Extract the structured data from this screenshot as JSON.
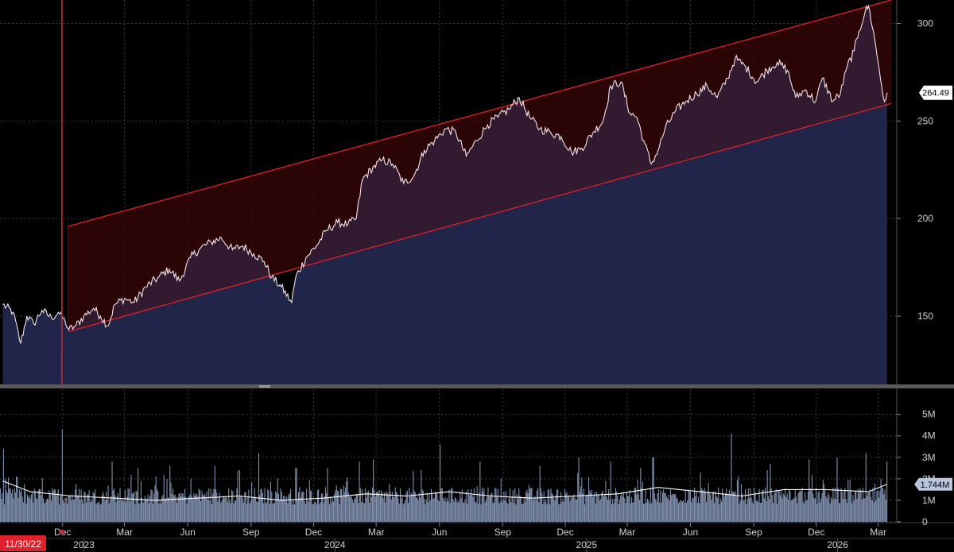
{
  "colors": {
    "background": "#000000",
    "price_fill": "#0b2240",
    "price_line": "#f2e4ea",
    "channel_line": "#e0202a",
    "channel_fill": "#3a0707",
    "volume_bar": "#7e8fad",
    "volume_avg": "#ffffff",
    "grid": "#3a3a3a",
    "marker": "#e0202a",
    "badge_bg": "#ffffff"
  },
  "chart_data": [
    {
      "type": "line",
      "panel": "price",
      "ylim": [
        115,
        312
      ],
      "yticks": [
        150,
        200,
        250,
        300
      ],
      "last_value": "264.49",
      "channel": {
        "upper": [
          [
            "2022-12-09",
            196
          ],
          [
            "2026-03-20",
            312
          ]
        ],
        "lower": [
          [
            "2022-12-09",
            142
          ],
          [
            "2026-03-20",
            259
          ]
        ]
      },
      "series": [
        {
          "values": [
            [
              "2022-09-05",
              156
            ],
            [
              "2022-09-20",
              152
            ],
            [
              "2022-10-01",
              136
            ],
            [
              "2022-10-10",
              150
            ],
            [
              "2022-10-20",
              146
            ],
            [
              "2022-11-01",
              153
            ],
            [
              "2022-11-15",
              149
            ],
            [
              "2022-11-25",
              152
            ],
            [
              "2022-12-05",
              147
            ],
            [
              "2022-12-10",
              143
            ],
            [
              "2022-12-20",
              145
            ],
            [
              "2023-01-01",
              150
            ],
            [
              "2023-01-15",
              154
            ],
            [
              "2023-01-25",
              150
            ],
            [
              "2023-02-05",
              145
            ],
            [
              "2023-02-15",
              156
            ],
            [
              "2023-03-01",
              159
            ],
            [
              "2023-03-15",
              157
            ],
            [
              "2023-04-01",
              165
            ],
            [
              "2023-04-20",
              170
            ],
            [
              "2023-05-05",
              174
            ],
            [
              "2023-05-20",
              168
            ],
            [
              "2023-06-05",
              180
            ],
            [
              "2023-06-20",
              185
            ],
            [
              "2023-07-05",
              188
            ],
            [
              "2023-07-20",
              190
            ],
            [
              "2023-08-05",
              184
            ],
            [
              "2023-08-20",
              186
            ],
            [
              "2023-09-05",
              182
            ],
            [
              "2023-09-20",
              178
            ],
            [
              "2023-10-01",
              170
            ],
            [
              "2023-10-15",
              165
            ],
            [
              "2023-10-30",
              157
            ],
            [
              "2023-11-05",
              170
            ],
            [
              "2023-11-20",
              180
            ],
            [
              "2023-12-05",
              186
            ],
            [
              "2023-12-20",
              194
            ],
            [
              "2024-01-05",
              198
            ],
            [
              "2024-01-20",
              197
            ],
            [
              "2024-02-01",
              200
            ],
            [
              "2024-02-10",
              220
            ],
            [
              "2024-02-25",
              226
            ],
            [
              "2024-03-10",
              230
            ],
            [
              "2024-03-25",
              228
            ],
            [
              "2024-04-10",
              218
            ],
            [
              "2024-04-25",
              222
            ],
            [
              "2024-05-10",
              235
            ],
            [
              "2024-05-25",
              240
            ],
            [
              "2024-06-10",
              246
            ],
            [
              "2024-06-25",
              244
            ],
            [
              "2024-07-10",
              232
            ],
            [
              "2024-07-25",
              240
            ],
            [
              "2024-08-10",
              248
            ],
            [
              "2024-08-25",
              252
            ],
            [
              "2024-09-10",
              256
            ],
            [
              "2024-09-25",
              262
            ],
            [
              "2024-10-10",
              252
            ],
            [
              "2024-10-25",
              246
            ],
            [
              "2024-11-10",
              244
            ],
            [
              "2024-11-25",
              242
            ],
            [
              "2024-12-10",
              234
            ],
            [
              "2024-12-25",
              236
            ],
            [
              "2025-01-10",
              244
            ],
            [
              "2025-01-25",
              250
            ],
            [
              "2025-02-05",
              268
            ],
            [
              "2025-02-20",
              270
            ],
            [
              "2025-03-05",
              254
            ],
            [
              "2025-03-15",
              252
            ],
            [
              "2025-03-25",
              240
            ],
            [
              "2025-04-05",
              228
            ],
            [
              "2025-04-15",
              235
            ],
            [
              "2025-04-25",
              246
            ],
            [
              "2025-05-10",
              255
            ],
            [
              "2025-05-25",
              260
            ],
            [
              "2025-06-10",
              264
            ],
            [
              "2025-06-25",
              268
            ],
            [
              "2025-07-10",
              262
            ],
            [
              "2025-07-25",
              272
            ],
            [
              "2025-08-05",
              282
            ],
            [
              "2025-08-20",
              278
            ],
            [
              "2025-09-05",
              270
            ],
            [
              "2025-09-20",
              276
            ],
            [
              "2025-10-05",
              280
            ],
            [
              "2025-10-20",
              276
            ],
            [
              "2025-11-01",
              262
            ],
            [
              "2025-11-15",
              266
            ],
            [
              "2025-11-30",
              260
            ],
            [
              "2025-12-10",
              272
            ],
            [
              "2025-12-25",
              260
            ],
            [
              "2026-01-05",
              264
            ],
            [
              "2026-01-15",
              278
            ],
            [
              "2026-01-25",
              286
            ],
            [
              "2026-02-01",
              296
            ],
            [
              "2026-02-10",
              306
            ],
            [
              "2026-02-15",
              309
            ],
            [
              "2026-02-22",
              296
            ],
            [
              "2026-03-01",
              280
            ],
            [
              "2026-03-06",
              268
            ],
            [
              "2026-03-10",
              260
            ],
            [
              "2026-03-14",
              264.49
            ]
          ]
        }
      ]
    },
    {
      "type": "bar",
      "panel": "volume",
      "ylim": [
        0,
        5.8
      ],
      "ytick_labels": [
        "0",
        "1M",
        "2M",
        "3M",
        "4M",
        "5M"
      ],
      "yticks": [
        0,
        1,
        2,
        3,
        4,
        5
      ],
      "units": "M",
      "last_avg_value": "1.744M",
      "volume_spikes": [
        [
          "2022-09-05",
          3.4
        ],
        [
          "2022-09-25",
          2.1
        ],
        [
          "2022-11-30",
          4.3
        ],
        [
          "2023-02-10",
          2.8
        ],
        [
          "2023-03-20",
          2.5
        ],
        [
          "2023-05-05",
          2.6
        ],
        [
          "2023-07-10",
          2.6
        ],
        [
          "2023-08-15",
          2.4
        ],
        [
          "2023-09-12",
          3.2
        ],
        [
          "2023-11-05",
          2.5
        ],
        [
          "2023-12-20",
          2.5
        ],
        [
          "2024-02-05",
          2.8
        ],
        [
          "2024-02-25",
          2.9
        ],
        [
          "2024-05-05",
          2.4
        ],
        [
          "2024-06-01",
          3.6
        ],
        [
          "2024-07-30",
          2.8
        ],
        [
          "2024-10-25",
          2.6
        ],
        [
          "2024-12-20",
          3.0
        ],
        [
          "2025-02-05",
          2.8
        ],
        [
          "2025-03-20",
          2.5
        ],
        [
          "2025-04-07",
          3.0
        ],
        [
          "2025-06-15",
          2.3
        ],
        [
          "2025-07-30",
          4.1
        ],
        [
          "2025-09-25",
          2.7
        ],
        [
          "2025-11-20",
          2.9
        ],
        [
          "2025-12-30",
          3.0
        ],
        [
          "2026-02-10",
          3.2
        ],
        [
          "2026-03-13",
          2.8
        ]
      ],
      "moving_average": [
        [
          "2022-09-05",
          1.9
        ],
        [
          "2022-10-15",
          1.4
        ],
        [
          "2022-12-15",
          1.2
        ],
        [
          "2023-02-15",
          1.1
        ],
        [
          "2023-04-15",
          1.0
        ],
        [
          "2023-06-15",
          1.1
        ],
        [
          "2023-08-15",
          1.2
        ],
        [
          "2023-10-15",
          1.0
        ],
        [
          "2023-12-15",
          1.1
        ],
        [
          "2024-02-15",
          1.3
        ],
        [
          "2024-04-15",
          1.2
        ],
        [
          "2024-06-15",
          1.4
        ],
        [
          "2024-08-15",
          1.2
        ],
        [
          "2024-10-15",
          1.1
        ],
        [
          "2024-12-15",
          1.2
        ],
        [
          "2025-02-15",
          1.3
        ],
        [
          "2025-04-15",
          1.6
        ],
        [
          "2025-06-15",
          1.4
        ],
        [
          "2025-08-15",
          1.2
        ],
        [
          "2025-10-15",
          1.5
        ],
        [
          "2025-12-15",
          1.5
        ],
        [
          "2026-02-15",
          1.4
        ],
        [
          "2026-03-14",
          1.744
        ]
      ]
    }
  ],
  "x_axis": {
    "months": [
      [
        "2022-12-01",
        "Dec"
      ],
      [
        "2023-03-01",
        "Mar"
      ],
      [
        "2023-06-01",
        "Jun"
      ],
      [
        "2023-09-01",
        "Sep"
      ],
      [
        "2023-12-01",
        "Dec"
      ],
      [
        "2024-03-01",
        "Mar"
      ],
      [
        "2024-06-01",
        "Jun"
      ],
      [
        "2024-09-01",
        "Sep"
      ],
      [
        "2024-12-01",
        "Dec"
      ],
      [
        "2025-03-01",
        "Mar"
      ],
      [
        "2025-06-01",
        "Jun"
      ],
      [
        "2025-09-01",
        "Sep"
      ],
      [
        "2025-12-01",
        "Dec"
      ],
      [
        "2026-03-01",
        "Mar"
      ]
    ],
    "years": [
      [
        "2023-01-01",
        "2023"
      ],
      [
        "2024-01-01",
        "2024"
      ],
      [
        "2025-01-01",
        "2025"
      ],
      [
        "2026-01-01",
        "2026"
      ]
    ],
    "range": [
      "2022-09-01",
      "2026-03-28"
    ]
  },
  "marker": {
    "date": "2022-11-30",
    "label": "11/30/22"
  }
}
